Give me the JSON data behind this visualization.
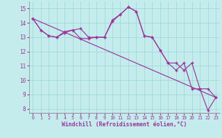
{
  "bg_color": "#c5eced",
  "line_color": "#993399",
  "xlim": [
    -0.5,
    23.5
  ],
  "ylim": [
    7.7,
    15.5
  ],
  "yticks": [
    8,
    9,
    10,
    11,
    12,
    13,
    14,
    15
  ],
  "xticks": [
    0,
    1,
    2,
    3,
    4,
    5,
    6,
    7,
    8,
    9,
    10,
    11,
    12,
    13,
    14,
    15,
    16,
    17,
    18,
    19,
    20,
    21,
    22,
    23
  ],
  "xlabel": "Windchill (Refroidissement éolien,°C)",
  "line1_x": [
    0,
    1,
    2,
    3,
    4,
    5,
    6,
    7,
    8,
    9,
    10,
    11,
    12,
    13,
    14,
    15,
    16,
    17,
    18,
    19,
    20,
    21,
    22,
    23
  ],
  "line1_y": [
    14.3,
    13.5,
    13.1,
    13.0,
    13.3,
    13.5,
    12.9,
    12.9,
    13.0,
    13.0,
    14.1,
    14.6,
    15.1,
    14.8,
    13.1,
    13.0,
    12.1,
    11.2,
    10.7,
    11.2,
    9.4,
    9.4,
    7.9,
    8.8
  ],
  "line2_x": [
    0,
    1,
    2,
    3,
    4,
    5,
    6,
    7,
    8,
    9,
    10,
    11,
    12,
    13,
    14,
    15,
    16,
    17,
    18,
    19,
    20,
    21,
    22,
    23
  ],
  "line2_y": [
    14.3,
    13.5,
    13.1,
    13.0,
    13.4,
    13.5,
    13.6,
    13.0,
    13.0,
    13.0,
    14.2,
    14.6,
    15.1,
    14.8,
    13.1,
    13.0,
    12.1,
    11.2,
    11.2,
    10.7,
    11.2,
    9.4,
    9.4,
    8.8
  ],
  "line3_x": [
    0,
    23
  ],
  "line3_y": [
    14.3,
    8.8
  ],
  "grid_color": "#a0d8d8",
  "tick_color": "#993399",
  "xlabel_color": "#993399"
}
